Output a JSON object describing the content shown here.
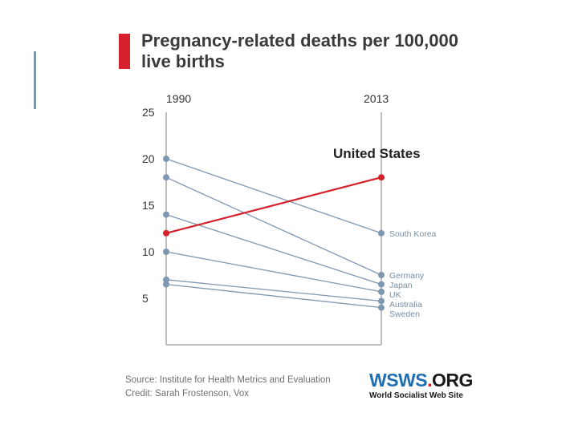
{
  "chart_data": {
    "type": "line",
    "title": "Pregnancy-related deaths per 100,000 live births",
    "title_lines": [
      "Pregnancy-related deaths per 100,000",
      "live births"
    ],
    "categories": [
      "1990",
      "2013"
    ],
    "ylim": [
      0,
      25
    ],
    "yticks": [
      5,
      10,
      15,
      20,
      25
    ],
    "series": [
      {
        "name": "United States",
        "values": [
          12,
          18
        ],
        "highlight": true
      },
      {
        "name": "South Korea",
        "values": [
          20,
          12
        ]
      },
      {
        "name": "Germany",
        "values": [
          18,
          7.5
        ]
      },
      {
        "name": "Japan",
        "values": [
          14,
          6.5
        ]
      },
      {
        "name": "UK",
        "values": [
          10,
          5.7
        ]
      },
      {
        "name": "Australia",
        "values": [
          7,
          4.7
        ]
      },
      {
        "name": "Sweden",
        "values": [
          6.5,
          4
        ]
      }
    ],
    "colors": {
      "highlight": "#d6202b",
      "other": "#7f98b2",
      "axis": "#aaaaaa"
    }
  },
  "footer": {
    "source": "Source: Institute for Health Metrics and Evaluation",
    "credit": "Credit: Sarah Frostenson, Vox"
  },
  "logo": {
    "part1": "WSWS",
    "part2": ".",
    "part3": "ORG",
    "subtitle": "World Socialist Web Site"
  }
}
